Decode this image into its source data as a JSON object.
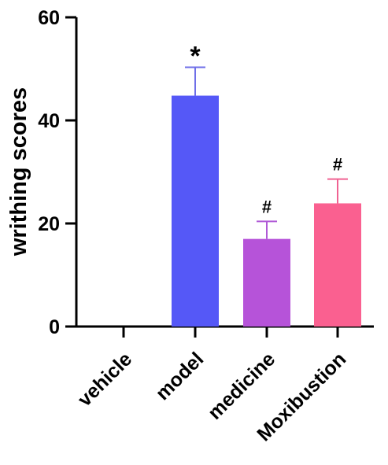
{
  "chart_data": {
    "type": "bar",
    "title": "",
    "xlabel": "",
    "ylabel": "writhing scores",
    "ylim": [
      0,
      60
    ],
    "yticks": [
      0,
      20,
      40,
      60
    ],
    "categories": [
      "vehicle",
      "model",
      "medicine",
      "Moxibustion"
    ],
    "values": [
      0,
      44.8,
      17.0,
      23.9
    ],
    "error": [
      0,
      5.5,
      3.4,
      4.7
    ],
    "annotations": [
      "",
      "*",
      "#",
      "#"
    ],
    "colors": [
      "#4c4cf5",
      "#5558f7",
      "#b653d9",
      "#fa6090"
    ],
    "error_colors": [
      "#4c4cf5",
      "#6f6fe8",
      "#b05ad6",
      "#f06292"
    ],
    "grid": false,
    "legend": "none"
  }
}
